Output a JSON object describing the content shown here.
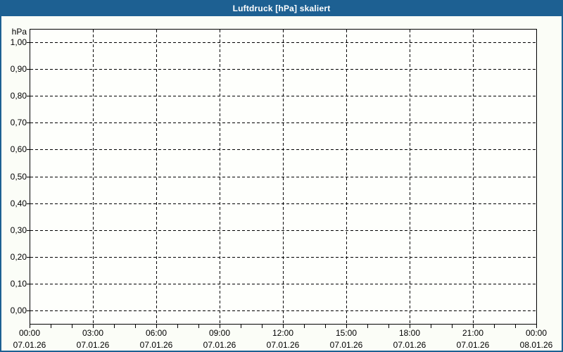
{
  "window": {
    "title": "Luftdruck [hPa] skaliert"
  },
  "colors": {
    "titlebar_bg": "#1d6092",
    "titlebar_text": "#ffffff",
    "page_border": "#1d6092",
    "page_bg": "#fbfdf7",
    "plot_bg": "#fefffc",
    "grid": "#000000",
    "text": "#000000"
  },
  "chart_data": {
    "type": "line",
    "title": "Luftdruck [hPa] skaliert",
    "ylabel": "hPa",
    "xlabel": "",
    "ylim": [
      0.0,
      1.0
    ],
    "grid": true,
    "grid_style": "dashed",
    "y_ticks": [
      {
        "value": 1.0,
        "label": "1,00"
      },
      {
        "value": 0.9,
        "label": "0,90"
      },
      {
        "value": 0.8,
        "label": "0,80"
      },
      {
        "value": 0.7,
        "label": "0,70"
      },
      {
        "value": 0.6,
        "label": "0,60"
      },
      {
        "value": 0.5,
        "label": "0,50"
      },
      {
        "value": 0.4,
        "label": "0,40"
      },
      {
        "value": 0.3,
        "label": "0,30"
      },
      {
        "value": 0.2,
        "label": "0,20"
      },
      {
        "value": 0.1,
        "label": "0,10"
      },
      {
        "value": 0.0,
        "label": "0,00"
      }
    ],
    "x_range_hours": [
      0,
      24
    ],
    "x_minor_tick_step_hours": 1,
    "x_ticks": [
      {
        "hour": 0,
        "time": "00:00",
        "date": "07.01.26"
      },
      {
        "hour": 3,
        "time": "03:00",
        "date": "07.01.26"
      },
      {
        "hour": 6,
        "time": "06:00",
        "date": "07.01.26"
      },
      {
        "hour": 9,
        "time": "09:00",
        "date": "07.01.26"
      },
      {
        "hour": 12,
        "time": "12:00",
        "date": "07.01.26"
      },
      {
        "hour": 15,
        "time": "15:00",
        "date": "07.01.26"
      },
      {
        "hour": 18,
        "time": "18:00",
        "date": "07.01.26"
      },
      {
        "hour": 21,
        "time": "21:00",
        "date": "07.01.26"
      },
      {
        "hour": 24,
        "time": "00:00",
        "date": "08.01.26"
      }
    ],
    "series": []
  }
}
